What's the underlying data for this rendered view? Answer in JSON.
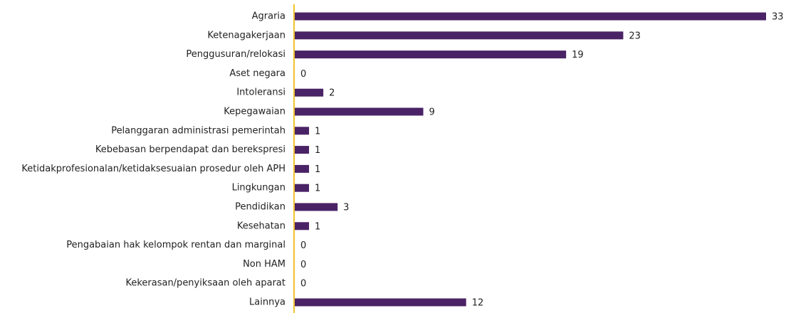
{
  "chart_data": {
    "type": "bar",
    "orientation": "horizontal",
    "color": "#4a2366",
    "categories": [
      "Agraria",
      "Ketenagakerjaan",
      "Penggusuran/relokasi",
      "Aset negara",
      "Intoleransi",
      "Kepegawaian",
      "Pelanggaran administrasi pemerintah",
      "Kebebasan berpendapat dan berekspresi",
      "Ketidakprofesionalan/ketidaksesuaian prosedur oleh APH",
      "Lingkungan",
      "Pendidikan",
      "Kesehatan",
      "Pengabaian hak kelompok rentan dan marginal",
      "Non HAM",
      "Kekerasan/penyiksaan oleh aparat",
      "Lainnya"
    ],
    "values": [
      33,
      23,
      19,
      0,
      2,
      9,
      1,
      1,
      1,
      1,
      3,
      1,
      0,
      0,
      0,
      12
    ]
  }
}
